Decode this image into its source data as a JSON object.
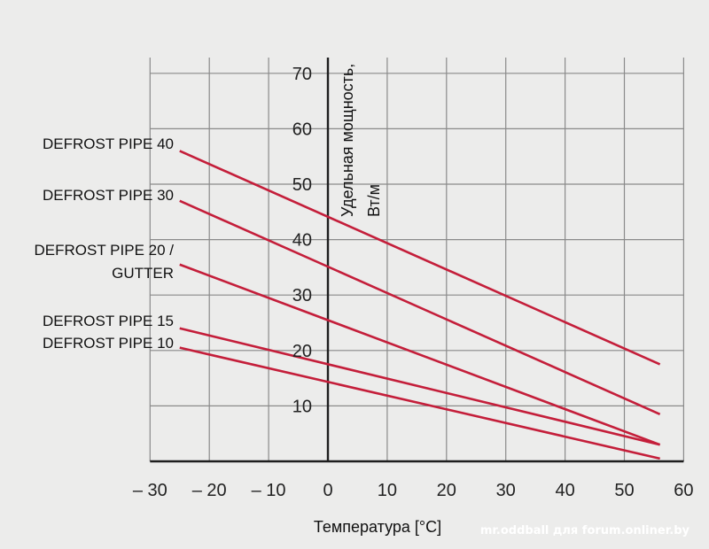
{
  "chart_data": {
    "type": "line",
    "xlabel": "Температура [°C]",
    "ylabel": "Удельная мощность, Вт/м",
    "xlim": [
      -30,
      60
    ],
    "ylim": [
      0,
      70
    ],
    "x_ticks": [
      "– 30",
      "– 20",
      "– 10",
      "0",
      "10",
      "20",
      "30",
      "40",
      "50",
      "60"
    ],
    "y_ticks": [
      "10",
      "20",
      "30",
      "40",
      "50",
      "60",
      "70"
    ],
    "grid": true,
    "series": [
      {
        "name": "DEFROST PIPE 40",
        "x": [
          -25,
          56
        ],
        "y": [
          56,
          17.5
        ],
        "color": "#c41e3a"
      },
      {
        "name": "DEFROST PIPE 30",
        "x": [
          -25,
          56
        ],
        "y": [
          47,
          8.5
        ],
        "color": "#c41e3a"
      },
      {
        "name": "DEFROST PIPE 20 / GUTTER",
        "x": [
          -25,
          56
        ],
        "y": [
          35.5,
          3
        ],
        "color": "#c41e3a"
      },
      {
        "name": "DEFROST PIPE 15",
        "x": [
          -25,
          56
        ],
        "y": [
          24,
          3
        ],
        "color": "#c41e3a"
      },
      {
        "name": "DEFROST PIPE 10",
        "x": [
          -25,
          56
        ],
        "y": [
          20.5,
          0.5
        ],
        "color": "#c41e3a"
      }
    ],
    "series_labels": [
      [
        "DEFROST PIPE 40"
      ],
      [
        "DEFROST PIPE 30"
      ],
      [
        "DEFROST PIPE 20 /",
        "GUTTER"
      ],
      [
        "DEFROST PIPE 15"
      ],
      [
        "DEFROST PIPE 10"
      ]
    ],
    "ylabel_lines": [
      "Удельная мощность,",
      "Вт/м"
    ]
  },
  "watermark": "mr.oddball для forum.onliner.by"
}
